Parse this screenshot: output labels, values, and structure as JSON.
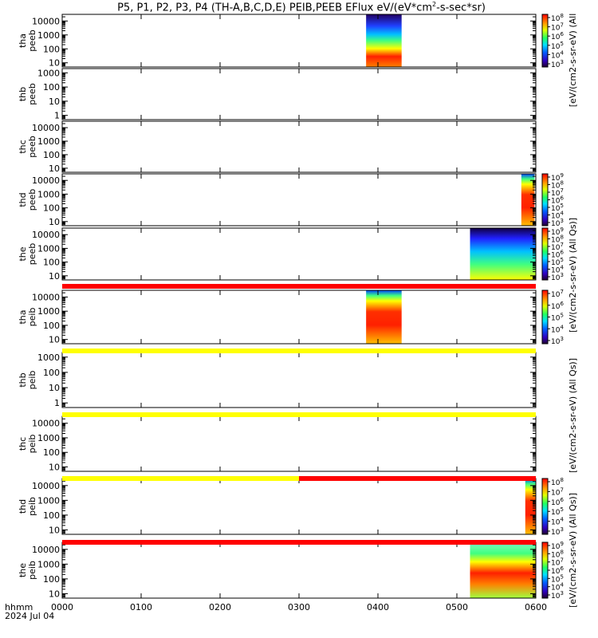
{
  "title": "P5, P1, P2, P3, P4 (TH-A,B,C,D,E) PEIB,PEEB EFlux eV/(eV*cm",
  "title_sup": "2",
  "title_end": "-s-sec*sr)",
  "colors": {
    "flag_red": "#ff0000",
    "flag_yellow": "#ffff00",
    "axis": "#000000"
  },
  "x_axis": {
    "ticks": [
      "0000",
      "0100",
      "0200",
      "0300",
      "0400",
      "0500",
      "0600"
    ],
    "label_hhmm": "hhmm",
    "label_date": "2024 Jul 04"
  },
  "colorbar_titles": {
    "cb1": "[eV/(cm2-s-sr-eV) (All",
    "cb2": "[eV/(cm2-s-sr-eV) (All Qs)]",
    "cb3": "[eV/(cm2-s-sr-eV) (All Qs)]",
    "cb4": "[eV/(cm2-s-sr-eV) (All Qs)]"
  },
  "panels": [
    {
      "id": "tha-peeb",
      "l1": "tha",
      "l2": "peeb",
      "yticks": [
        "10000",
        "1000",
        "100",
        "10"
      ],
      "cb": {
        "ticks": [
          "10",
          "10",
          "10",
          "10",
          "10",
          "10"
        ],
        "exps": [
          "8",
          "7",
          "6",
          "5",
          "4",
          "3"
        ]
      }
    },
    {
      "id": "thb-peeb",
      "l1": "thb",
      "l2": "peeb",
      "yticks": [
        "1000",
        "100",
        "10",
        "1"
      ]
    },
    {
      "id": "thc-peeb",
      "l1": "thc",
      "l2": "peeb",
      "yticks": [
        "10000",
        "1000",
        "100",
        "10"
      ]
    },
    {
      "id": "thd-peeb",
      "l1": "thd",
      "l2": "peeb",
      "yticks": [
        "10000",
        "1000",
        "100",
        "10"
      ],
      "cb": {
        "ticks": [
          "10",
          "10",
          "10",
          "10",
          "10",
          "10",
          "10"
        ],
        "exps": [
          "9",
          "8",
          "7",
          "6",
          "5",
          "4",
          "3"
        ]
      }
    },
    {
      "id": "the-peeb",
      "l1": "the",
      "l2": "peeb",
      "yticks": [
        "10000",
        "1000",
        "100",
        "10"
      ],
      "cb": {
        "ticks": [
          "10",
          "10",
          "10",
          "10",
          "10",
          "10",
          "10"
        ],
        "exps": [
          "9",
          "8",
          "7",
          "6",
          "5",
          "4",
          "3"
        ]
      }
    },
    {
      "id": "tha-peib",
      "l1": "tha",
      "l2": "peib",
      "yticks": [
        "10000",
        "1000",
        "100",
        "10"
      ],
      "cb": {
        "ticks": [
          "10",
          "10",
          "10",
          "10",
          "10"
        ],
        "exps": [
          "7",
          "6",
          "5",
          "4",
          "3"
        ]
      }
    },
    {
      "id": "thb-peib",
      "l1": "thb",
      "l2": "peib",
      "yticks": [
        "1000",
        "100",
        "10",
        "1"
      ]
    },
    {
      "id": "thc-peib",
      "l1": "thc",
      "l2": "peib",
      "yticks": [
        "10000",
        "1000",
        "100",
        "10"
      ]
    },
    {
      "id": "thd-peib",
      "l1": "thd",
      "l2": "peib",
      "yticks": [
        "10000",
        "1000",
        "100",
        "10"
      ],
      "cb": {
        "ticks": [
          "10",
          "10",
          "10",
          "10",
          "10",
          "10"
        ],
        "exps": [
          "8",
          "7",
          "6",
          "5",
          "4",
          "3"
        ]
      }
    },
    {
      "id": "the-peib",
      "l1": "the",
      "l2": "peib",
      "yticks": [
        "10000",
        "1000",
        "100",
        "10"
      ],
      "cb": {
        "ticks": [
          "10",
          "10",
          "10",
          "10",
          "10",
          "10",
          "10"
        ],
        "exps": [
          "9",
          "8",
          "7",
          "6",
          "5",
          "4",
          "3"
        ]
      }
    }
  ],
  "chart_data": {
    "type": "heatmap",
    "x_range_hhmm": [
      "0000",
      "0600"
    ],
    "y_scale": "log",
    "z_scale": "log",
    "colormap": "rainbow",
    "date": "2024 Jul 04",
    "spectrograms": [
      {
        "panel": "tha peeb",
        "ylim": [
          5,
          30000
        ],
        "blocks": [
          {
            "t_start": "0351",
            "t_end": "0418"
          }
        ],
        "colorbar_range": [
          1000.0,
          100000000.0
        ]
      },
      {
        "panel": "thb peeb",
        "ylim": [
          0.5,
          2000
        ],
        "blocks": []
      },
      {
        "panel": "thc peeb",
        "ylim": [
          5,
          30000
        ],
        "blocks": []
      },
      {
        "panel": "thd peeb",
        "ylim": [
          5,
          30000
        ],
        "blocks": [
          {
            "t_start": "0549",
            "t_end": "0559"
          }
        ],
        "colorbar_range": [
          1000.0,
          1000000000.0
        ]
      },
      {
        "panel": "the peeb",
        "ylim": [
          5,
          30000
        ],
        "blocks": [
          {
            "t_start": "0510",
            "t_end": "0600"
          }
        ],
        "colorbar_range": [
          1000.0,
          1000000000.0
        ]
      },
      {
        "panel": "tha peib",
        "ylim": [
          5,
          30000
        ],
        "blocks": [
          {
            "t_start": "0351",
            "t_end": "0418"
          }
        ],
        "colorbar_range": [
          1000.0,
          10000000.0
        ]
      },
      {
        "panel": "thb peib",
        "ylim": [
          0.5,
          2000
        ],
        "blocks": []
      },
      {
        "panel": "thc peib",
        "ylim": [
          5,
          30000
        ],
        "blocks": []
      },
      {
        "panel": "thd peib",
        "ylim": [
          5,
          30000
        ],
        "blocks": [
          {
            "t_start": "0552",
            "t_end": "0600"
          }
        ],
        "colorbar_range": [
          1000.0,
          100000000.0
        ]
      },
      {
        "panel": "the peib",
        "ylim": [
          5,
          30000
        ],
        "blocks": [
          {
            "t_start": "0510",
            "t_end": "0600"
          }
        ],
        "colorbar_range": [
          1000.0,
          1000000000.0
        ]
      }
    ],
    "mode_bars": [
      {
        "after_panel": "the peeb",
        "segments": [
          {
            "t_start": "0000",
            "t_end": "0600",
            "color": "red"
          }
        ]
      },
      {
        "after_panel": "tha peib",
        "segments": [
          {
            "t_start": "0000",
            "t_end": "0600",
            "color": "yellow"
          }
        ]
      },
      {
        "after_panel": "thb peib",
        "segments": [
          {
            "t_start": "0000",
            "t_end": "0600",
            "color": "yellow"
          }
        ]
      },
      {
        "after_panel": "thc peib",
        "segments": [
          {
            "t_start": "0000",
            "t_end": "0300",
            "color": "yellow"
          },
          {
            "t_start": "0300",
            "t_end": "0600",
            "color": "red"
          }
        ]
      },
      {
        "after_panel": "thd peib",
        "segments": [
          {
            "t_start": "0000",
            "t_end": "0600",
            "color": "red"
          }
        ]
      }
    ]
  }
}
